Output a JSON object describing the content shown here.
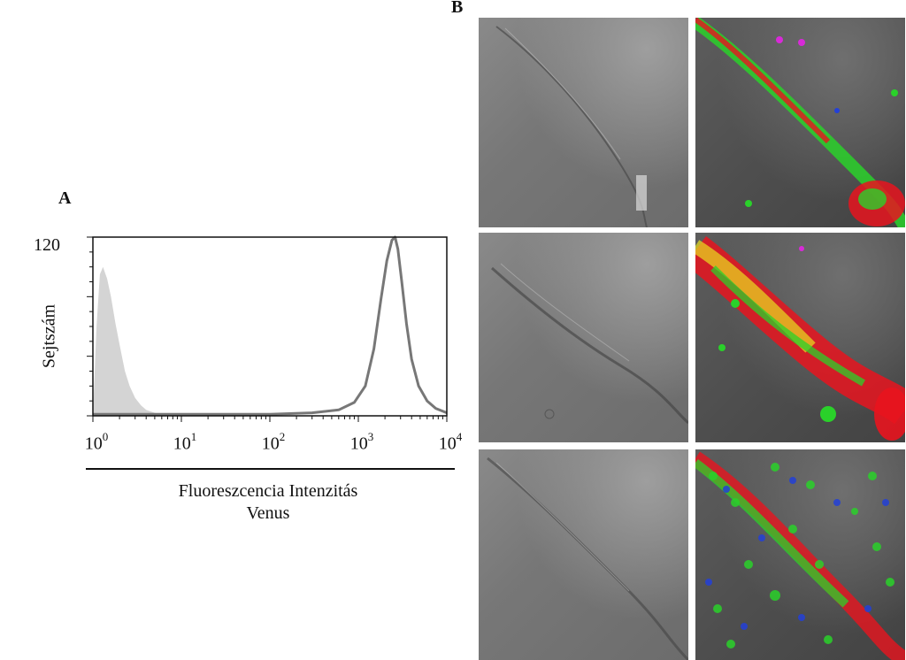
{
  "figure": {
    "panel_a_label": "A",
    "panel_b_label": "B"
  },
  "histogram": {
    "ymax_label": "120",
    "ylabel": "Sejtszám",
    "xlabel_line1": "Fluoreszcencia Intenzitás",
    "xlabel_line2": "Venus",
    "xticks": [
      {
        "base": "10",
        "exp": "0"
      },
      {
        "base": "10",
        "exp": "1"
      },
      {
        "base": "10",
        "exp": "2"
      },
      {
        "base": "10",
        "exp": "3"
      },
      {
        "base": "10",
        "exp": "4"
      }
    ]
  },
  "chart_data": {
    "type": "area",
    "title": "",
    "xlabel": "Fluoreszcencia Intenzitás Venus",
    "ylabel": "Sejtszám",
    "xscale": "log",
    "xlim": [
      1,
      10000
    ],
    "ylim": [
      0,
      120
    ],
    "grid": false,
    "series": [
      {
        "style": "filled",
        "color": "#d4d4d4",
        "x": [
          1.0,
          1.1,
          1.2,
          1.3,
          1.45,
          1.6,
          1.8,
          2.0,
          2.3,
          2.6,
          3.0,
          3.5,
          4.0,
          5.0,
          6.0,
          8.0,
          10.0
        ],
        "y": [
          0,
          60,
          95,
          100,
          92,
          80,
          62,
          48,
          30,
          20,
          12,
          7,
          4,
          2,
          1,
          1,
          0
        ]
      },
      {
        "style": "outline",
        "color": "#777777",
        "x": [
          1.0,
          100,
          300,
          600,
          900,
          1200,
          1500,
          1800,
          2100,
          2400,
          2600,
          2800,
          3100,
          3500,
          4000,
          4800,
          6000,
          7500,
          10000
        ],
        "y": [
          1,
          1,
          2,
          4,
          9,
          20,
          45,
          78,
          104,
          118,
          120,
          112,
          90,
          62,
          38,
          20,
          10,
          5,
          2
        ]
      }
    ]
  },
  "micrographs": [
    {
      "row": 1,
      "col": 1,
      "mode": "brightfield"
    },
    {
      "row": 1,
      "col": 2,
      "mode": "fluorescence"
    },
    {
      "row": 2,
      "col": 1,
      "mode": "brightfield"
    },
    {
      "row": 2,
      "col": 2,
      "mode": "fluorescence"
    },
    {
      "row": 3,
      "col": 1,
      "mode": "brightfield"
    },
    {
      "row": 3,
      "col": 2,
      "mode": "fluorescence"
    }
  ],
  "colors": {
    "venus_green": "#2ad12a",
    "red_stain": "#e8141e",
    "blue_nuclei": "#2340d8",
    "yellow_overlap": "#e8e020",
    "negative_fill": "#d4d4d4",
    "positive_line": "#777777"
  }
}
